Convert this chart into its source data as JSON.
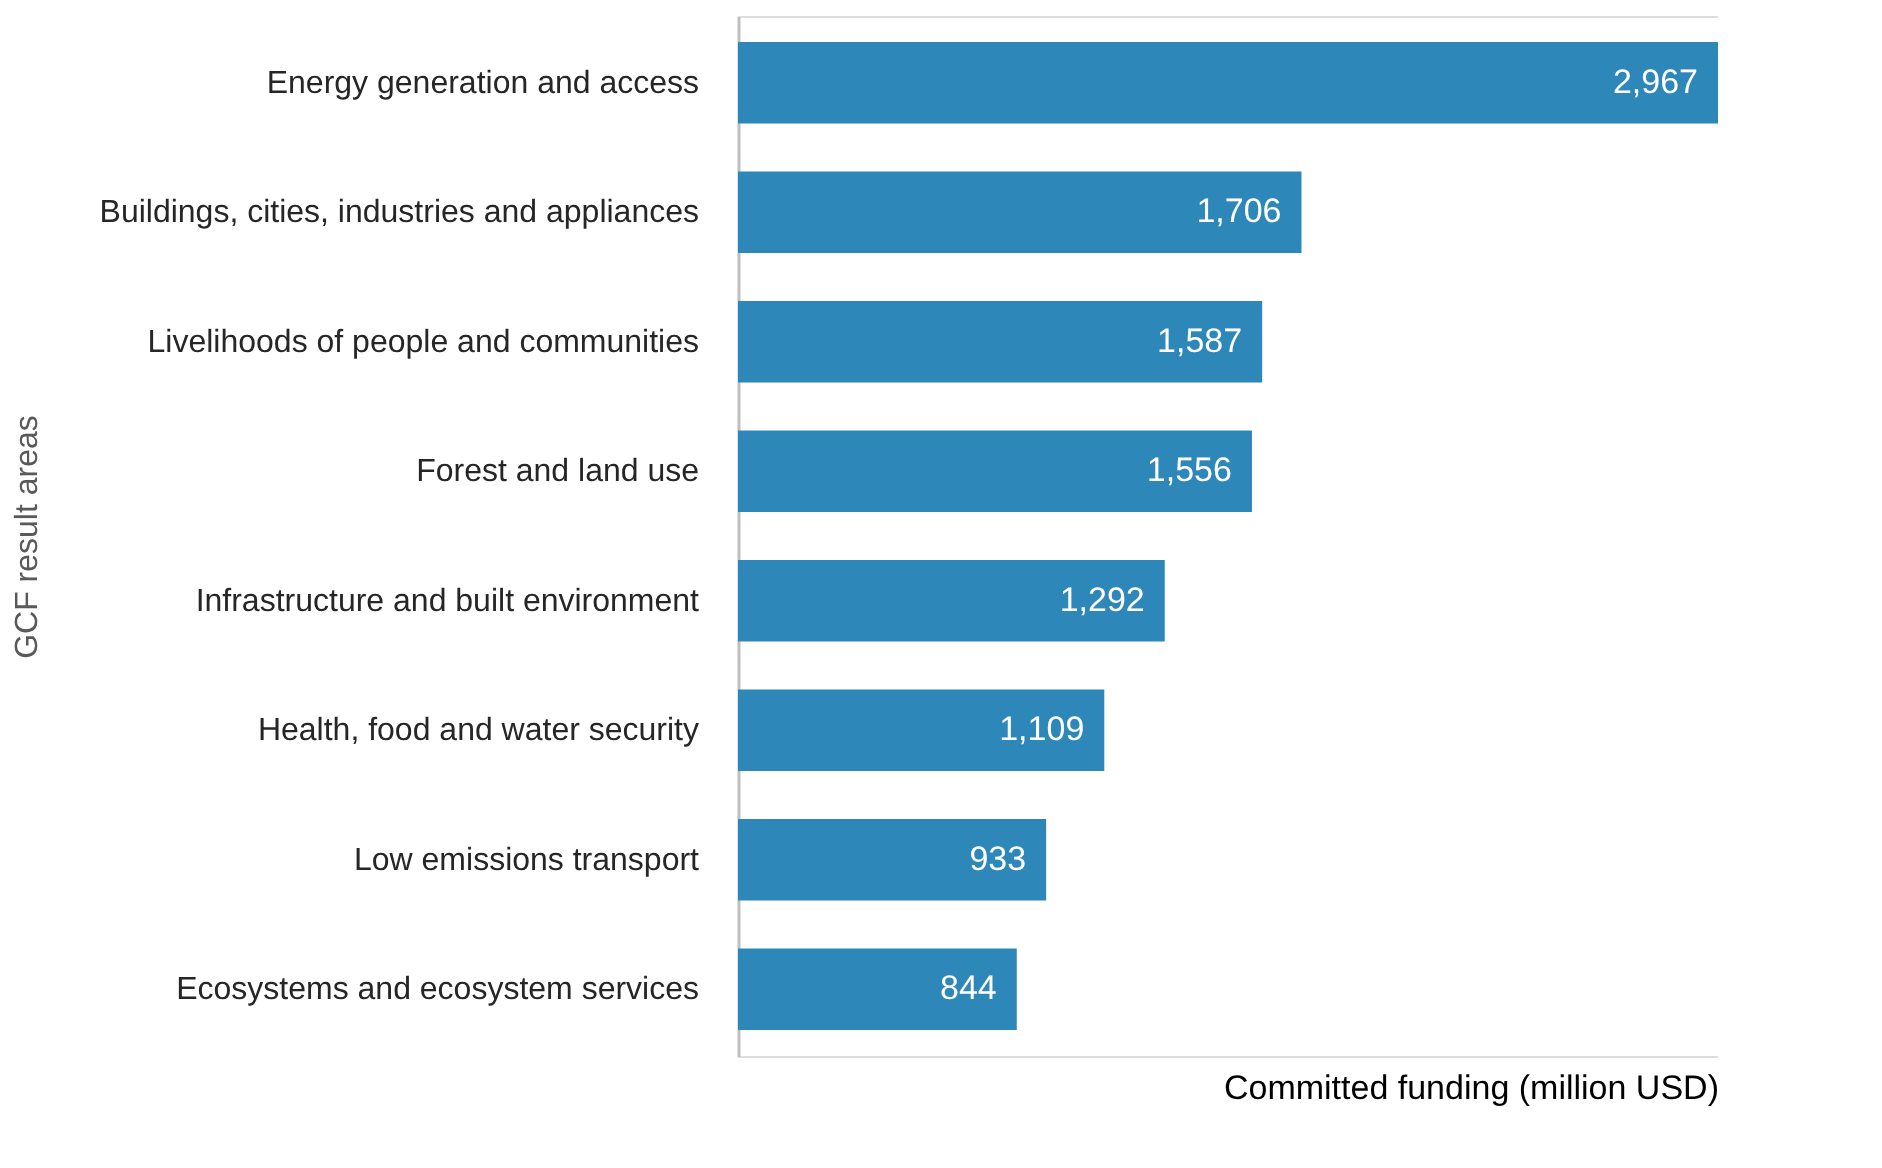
{
  "chart_data": {
    "type": "bar",
    "orientation": "horizontal",
    "ylabel": "GCF result areas",
    "xlabel": "Committed funding (million USD)",
    "categories": [
      "Energy generation and access",
      "Buildings, cities, industries and appliances",
      "Livelihoods of people and communities",
      "Forest and land use",
      "Infrastructure and built environment",
      "Health, food and water security",
      "Low emissions transport",
      "Ecosystems and ecosystem services"
    ],
    "values": [
      2967,
      1706,
      1587,
      1556,
      1292,
      1109,
      933,
      844
    ],
    "color": "#2e87b9",
    "value_labels": [
      "2,967",
      "1,706",
      "1,587",
      "1,556",
      "1,292",
      "1,109",
      "933",
      "844"
    ],
    "tick_labels": "y",
    "grid": false
  }
}
